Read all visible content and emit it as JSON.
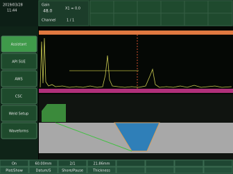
{
  "header": {
    "date": "2019/03/28",
    "time": "11:44",
    "gain_label": "Gain",
    "gain": "48.0",
    "x1": "X1 = 0.0",
    "channel_label": "Channel",
    "channel": "1 / 1"
  },
  "sidebar": {
    "buttons": [
      "Assistant",
      "API 5UE",
      "AWS",
      "CSC",
      "Weld Setup",
      "Waveforms"
    ]
  },
  "bottom": {
    "row1": [
      "On",
      "60.00mm",
      "2/1",
      "21.86mm"
    ],
    "row2": [
      "Plot/Show",
      "Datum/S",
      "Shore/Pause",
      "Thickness"
    ]
  }
}
